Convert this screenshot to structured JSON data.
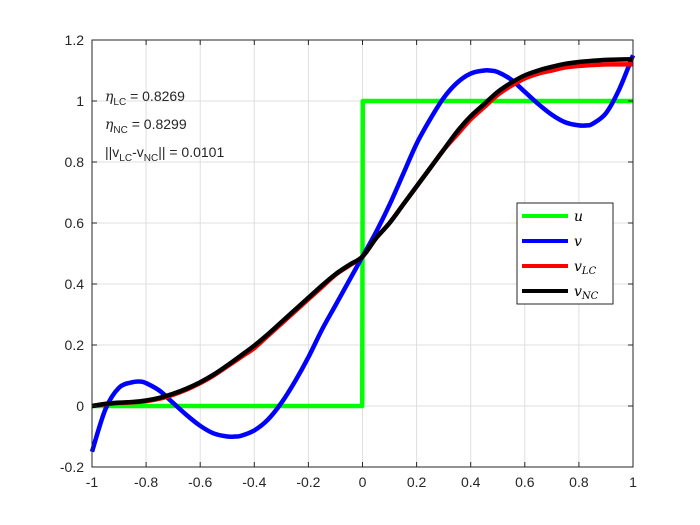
{
  "chart_data": {
    "type": "line",
    "title": "",
    "xlabel": "",
    "ylabel": "",
    "xlim": [
      -1,
      1
    ],
    "ylim": [
      -0.2,
      1.2
    ],
    "grid": true,
    "xticks": [
      "-1",
      "-0.8",
      "-0.6",
      "-0.4",
      "-0.2",
      "0",
      "0.2",
      "0.4",
      "0.6",
      "0.8",
      "1"
    ],
    "yticks": [
      "-0.2",
      "0",
      "0.2",
      "0.4",
      "0.6",
      "0.8",
      "1",
      "1.2"
    ],
    "xtick_values": [
      -1,
      -0.8,
      -0.6,
      -0.4,
      -0.2,
      0,
      0.2,
      0.4,
      0.6,
      0.8,
      1
    ],
    "ytick_values": [
      -0.2,
      0,
      0.2,
      0.4,
      0.6,
      0.8,
      1,
      1.2
    ],
    "legend_position": "right",
    "annotations": {
      "eta_lc": {
        "symbol": "η",
        "sub": "LC",
        "text": " = 0.8269"
      },
      "eta_nc": {
        "symbol": "η",
        "sub": "NC",
        "text": " = 0.8299"
      },
      "norm": {
        "pre": "||v",
        "sub1": "LC",
        "mid": "-v",
        "sub2": "NC",
        "post": "|| = 0.0101"
      }
    },
    "series": [
      {
        "name": "u",
        "name_main": "u",
        "name_sub": "",
        "color": "#00ff00",
        "x": [
          -1,
          -0.001,
          0.001,
          1
        ],
        "y": [
          0,
          0,
          1,
          1
        ]
      },
      {
        "name": "v",
        "name_main": "v",
        "name_sub": "",
        "color": "#0000ff",
        "x": [
          -1,
          -0.95,
          -0.9,
          -0.85,
          -0.82,
          -0.8,
          -0.75,
          -0.7,
          -0.65,
          -0.6,
          -0.55,
          -0.5,
          -0.47,
          -0.45,
          -0.4,
          -0.35,
          -0.3,
          -0.25,
          -0.2,
          -0.15,
          -0.1,
          -0.05,
          0,
          0.05,
          0.1,
          0.15,
          0.2,
          0.25,
          0.3,
          0.35,
          0.4,
          0.45,
          0.47,
          0.5,
          0.55,
          0.6,
          0.65,
          0.7,
          0.75,
          0.8,
          0.83,
          0.85,
          0.9,
          0.95,
          1
        ],
        "y": [
          -0.15,
          -0.01,
          0.06,
          0.078,
          0.08,
          0.075,
          0.05,
          0.01,
          -0.03,
          -0.065,
          -0.09,
          -0.1,
          -0.1,
          -0.098,
          -0.08,
          -0.045,
          0.01,
          0.08,
          0.16,
          0.25,
          0.33,
          0.41,
          0.49,
          0.57,
          0.66,
          0.76,
          0.86,
          0.94,
          1.01,
          1.06,
          1.09,
          1.1,
          1.1,
          1.095,
          1.07,
          1.03,
          0.99,
          0.955,
          0.93,
          0.92,
          0.92,
          0.925,
          0.96,
          1.04,
          1.15
        ]
      },
      {
        "name": "v_LC",
        "name_main": "v",
        "name_sub": "LC",
        "color": "#ff0000",
        "x": [
          -1,
          -0.95,
          -0.9,
          -0.85,
          -0.8,
          -0.75,
          -0.7,
          -0.65,
          -0.6,
          -0.55,
          -0.5,
          -0.45,
          -0.4,
          -0.35,
          -0.3,
          -0.25,
          -0.2,
          -0.15,
          -0.1,
          -0.05,
          0,
          0.05,
          0.1,
          0.15,
          0.2,
          0.25,
          0.3,
          0.35,
          0.4,
          0.45,
          0.5,
          0.55,
          0.6,
          0.65,
          0.7,
          0.75,
          0.8,
          0.85,
          0.9,
          0.95,
          1
        ],
        "y": [
          0,
          0.006,
          0.01,
          0.012,
          0.016,
          0.024,
          0.037,
          0.054,
          0.075,
          0.1,
          0.13,
          0.16,
          0.19,
          0.23,
          0.27,
          0.31,
          0.35,
          0.39,
          0.43,
          0.46,
          0.49,
          0.55,
          0.6,
          0.66,
          0.72,
          0.78,
          0.84,
          0.89,
          0.94,
          0.98,
          1.02,
          1.05,
          1.074,
          1.09,
          1.1,
          1.11,
          1.115,
          1.118,
          1.12,
          1.12,
          1.12
        ]
      },
      {
        "name": "v_NC",
        "name_main": "v",
        "name_sub": "NC",
        "color": "#000000",
        "x": [
          -1,
          -0.95,
          -0.9,
          -0.85,
          -0.8,
          -0.75,
          -0.7,
          -0.65,
          -0.6,
          -0.55,
          -0.5,
          -0.45,
          -0.4,
          -0.35,
          -0.3,
          -0.25,
          -0.2,
          -0.15,
          -0.1,
          -0.05,
          0,
          0.05,
          0.1,
          0.15,
          0.2,
          0.25,
          0.3,
          0.35,
          0.4,
          0.45,
          0.5,
          0.55,
          0.6,
          0.65,
          0.7,
          0.75,
          0.8,
          0.85,
          0.9,
          0.95,
          1
        ],
        "y": [
          0,
          0.007,
          0.011,
          0.013,
          0.018,
          0.027,
          0.04,
          0.057,
          0.078,
          0.103,
          0.133,
          0.165,
          0.198,
          0.235,
          0.275,
          0.315,
          0.355,
          0.395,
          0.432,
          0.462,
          0.49,
          0.55,
          0.6,
          0.66,
          0.72,
          0.78,
          0.84,
          0.9,
          0.95,
          0.99,
          1.03,
          1.06,
          1.084,
          1.1,
          1.112,
          1.122,
          1.128,
          1.132,
          1.135,
          1.136,
          1.137
        ]
      }
    ]
  }
}
